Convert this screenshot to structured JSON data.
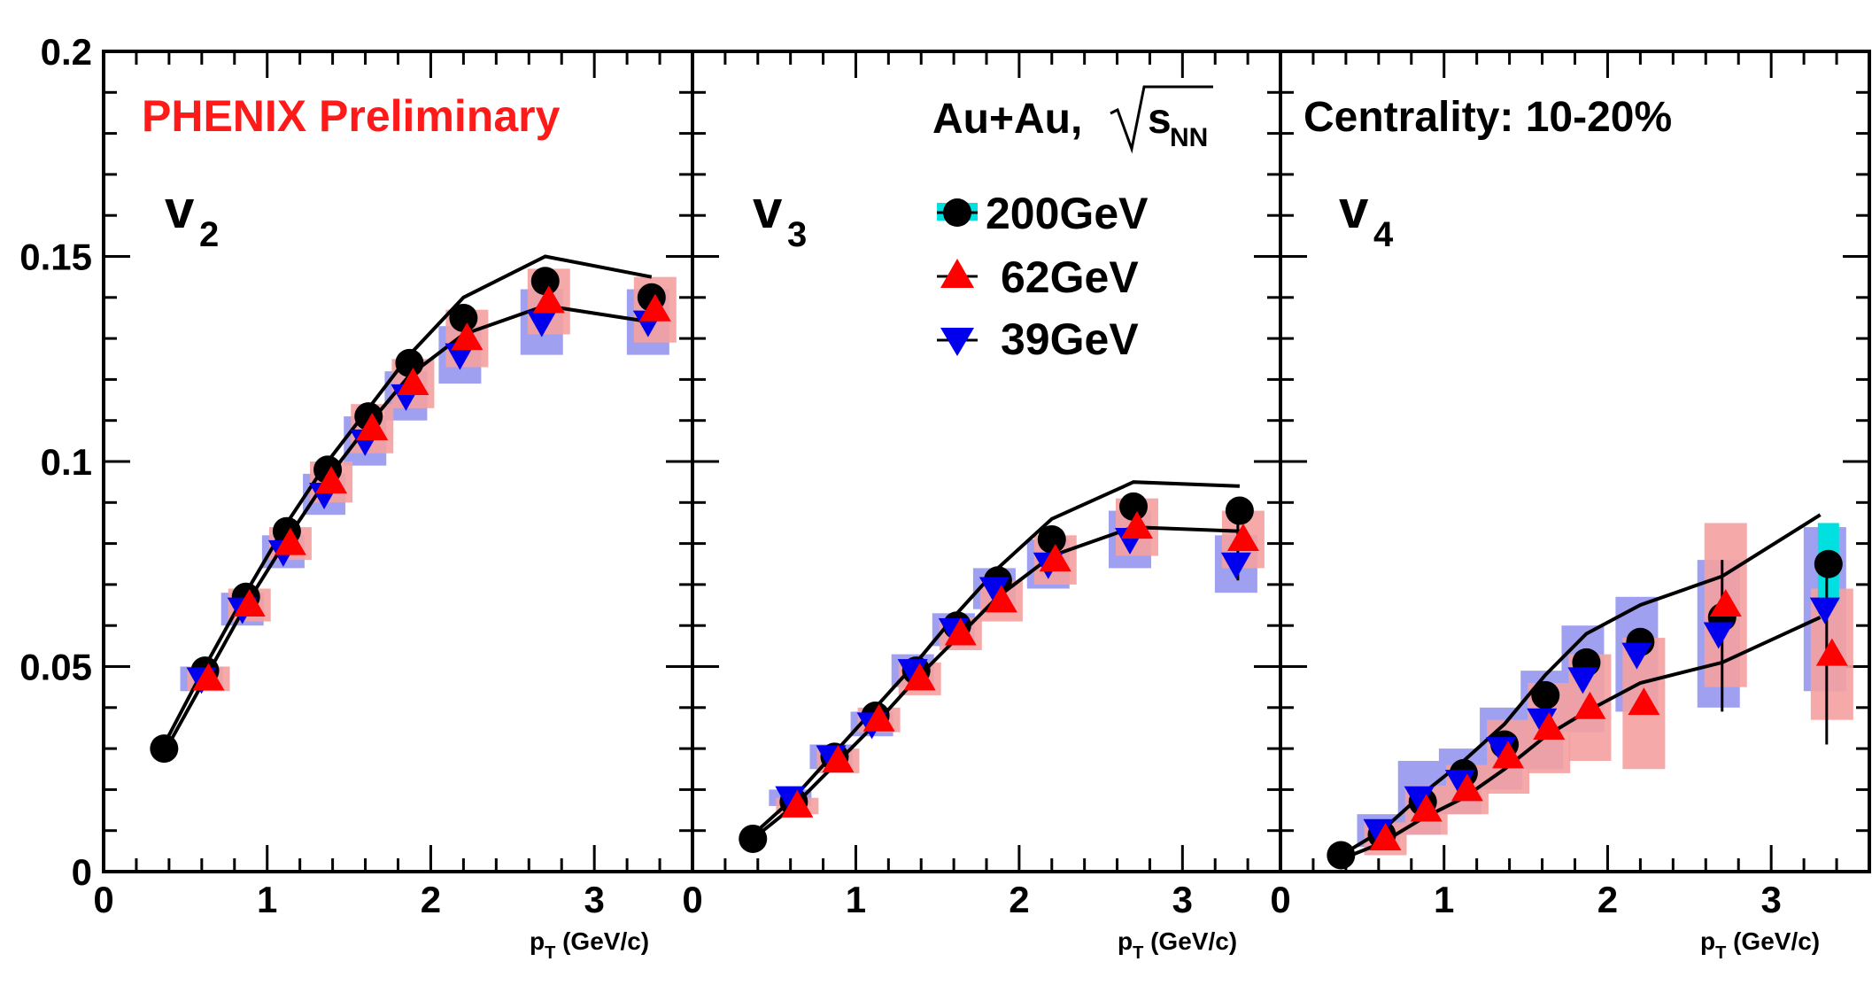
{
  "chart_data": {
    "type": "scatter",
    "title": "PHENIX Preliminary",
    "system_label": "Au+Au,",
    "energy_symbol": "s",
    "energy_subscript": "NN",
    "centrality_label": "Centrality: 10-20%",
    "xlabel": "p",
    "xlabel_sub": "T",
    "xlabel_unit": " (GeV/c)",
    "xlim": [
      0,
      3.6
    ],
    "ylim": [
      0,
      0.2
    ],
    "xticks": [
      "0",
      "1",
      "2",
      "3"
    ],
    "yticks": [
      "0",
      "0.05",
      "0.1",
      "0.15",
      "0.2"
    ],
    "colors": {
      "s200": "#000000",
      "s62": "#ff0000",
      "s39": "#0000ee",
      "sys62": "#f4a0a0",
      "sys39": "#a0a0f0",
      "sys200": "#00e0e0",
      "model": "#000000"
    },
    "legend": [
      {
        "label": "200GeV",
        "marker": "circle"
      },
      {
        "label": "62GeV",
        "marker": "triangle-up"
      },
      {
        "label": "39GeV",
        "marker": "triangle-down"
      }
    ],
    "panels": [
      {
        "name": "v2",
        "var": "v",
        "sub": "2",
        "series": [
          {
            "name": "200GeV",
            "x": [
              0.37,
              0.62,
              0.87,
              1.12,
              1.37,
              1.62,
              1.87,
              2.2,
              2.7,
              3.35
            ],
            "y": [
              0.03,
              0.049,
              0.067,
              0.083,
              0.098,
              0.111,
              0.124,
              0.135,
              0.144,
              0.14
            ]
          },
          {
            "name": "62GeV",
            "x": [
              0.62,
              0.87,
              1.12,
              1.37,
              1.62,
              1.87,
              2.2,
              2.7,
              3.35
            ],
            "y": [
              0.047,
              0.065,
              0.08,
              0.095,
              0.108,
              0.119,
              0.13,
              0.139,
              0.137
            ]
          },
          {
            "name": "39GeV",
            "x": [
              0.62,
              0.87,
              1.12,
              1.37,
              1.62,
              1.87,
              2.2,
              2.7,
              3.35
            ],
            "y": [
              0.047,
              0.064,
              0.078,
              0.092,
              0.105,
              0.116,
              0.126,
              0.134,
              0.134
            ]
          }
        ],
        "sys_62": [
          0.003,
          0.004,
          0.004,
          0.005,
          0.006,
          0.006,
          0.007,
          0.008,
          0.008
        ],
        "sys_39": [
          0.003,
          0.004,
          0.004,
          0.005,
          0.006,
          0.006,
          0.007,
          0.008,
          0.008
        ],
        "model_upper": {
          "x": [
            0.37,
            0.62,
            0.87,
            1.12,
            1.37,
            1.62,
            1.87,
            2.2,
            2.7,
            3.35
          ],
          "y": [
            0.031,
            0.05,
            0.068,
            0.085,
            0.1,
            0.113,
            0.126,
            0.14,
            0.15,
            0.145
          ]
        },
        "model_lower": {
          "x": [
            0.37,
            0.62,
            0.87,
            1.12,
            1.37,
            1.62,
            1.87,
            2.2,
            2.7,
            3.35
          ],
          "y": [
            0.029,
            0.047,
            0.065,
            0.081,
            0.096,
            0.109,
            0.121,
            0.131,
            0.138,
            0.134
          ]
        }
      },
      {
        "name": "v3",
        "var": "v",
        "sub": "3",
        "series": [
          {
            "name": "200GeV",
            "x": [
              0.37,
              0.62,
              0.87,
              1.12,
              1.37,
              1.62,
              1.87,
              2.2,
              2.7,
              3.35
            ],
            "y": [
              0.008,
              0.017,
              0.028,
              0.038,
              0.049,
              0.06,
              0.071,
              0.081,
              0.089,
              0.088
            ]
          },
          {
            "name": "62GeV",
            "x": [
              0.62,
              0.87,
              1.12,
              1.37,
              1.62,
              1.87,
              2.2,
              2.7,
              3.35
            ],
            "y": [
              0.016,
              0.027,
              0.037,
              0.047,
              0.058,
              0.066,
              0.076,
              0.084,
              0.081
            ]
          },
          {
            "name": "39GeV",
            "x": [
              0.62,
              0.87,
              1.12,
              1.37,
              1.62,
              1.87,
              2.2,
              2.7,
              3.35
            ],
            "y": [
              0.018,
              0.028,
              0.036,
              0.049,
              0.059,
              0.069,
              0.075,
              0.081,
              0.075
            ]
          }
        ],
        "sys_62": [
          0.002,
          0.003,
          0.003,
          0.004,
          0.004,
          0.005,
          0.006,
          0.007,
          0.007
        ],
        "sys_39": [
          0.002,
          0.003,
          0.003,
          0.004,
          0.004,
          0.005,
          0.006,
          0.007,
          0.007
        ],
        "model_upper": {
          "x": [
            0.37,
            0.62,
            0.87,
            1.12,
            1.37,
            1.62,
            1.87,
            2.2,
            2.7,
            3.35
          ],
          "y": [
            0.009,
            0.018,
            0.029,
            0.04,
            0.051,
            0.063,
            0.074,
            0.086,
            0.095,
            0.094
          ]
        },
        "model_lower": {
          "x": [
            0.37,
            0.62,
            0.87,
            1.12,
            1.37,
            1.62,
            1.87,
            2.2,
            2.7,
            3.35
          ],
          "y": [
            0.008,
            0.016,
            0.026,
            0.036,
            0.047,
            0.057,
            0.067,
            0.077,
            0.084,
            0.083
          ]
        }
      },
      {
        "name": "v4",
        "var": "v",
        "sub": "4",
        "series": [
          {
            "name": "200GeV",
            "x": [
              0.37,
              0.62,
              0.87,
              1.12,
              1.37,
              1.62,
              1.87,
              2.2,
              2.7,
              3.35
            ],
            "y": [
              0.004,
              0.009,
              0.017,
              0.024,
              0.031,
              0.043,
              0.051,
              0.056,
              0.062,
              0.075
            ]
          },
          {
            "name": "62GeV",
            "x": [
              0.62,
              0.87,
              1.12,
              1.37,
              1.62,
              1.87,
              2.2,
              2.7,
              3.35
            ],
            "y": [
              0.008,
              0.015,
              0.02,
              0.028,
              0.035,
              0.04,
              0.041,
              0.065,
              0.053
            ]
          },
          {
            "name": "39GeV",
            "x": [
              0.62,
              0.87,
              1.12,
              1.37,
              1.62,
              1.87,
              2.2,
              2.7,
              3.35
            ],
            "y": [
              0.01,
              0.018,
              0.022,
              0.03,
              0.037,
              0.047,
              0.053,
              0.058,
              0.064
            ]
          }
        ],
        "sys_62": [
          0.004,
          0.006,
          0.006,
          0.009,
          0.011,
          0.013,
          0.016,
          0.02,
          0.016
        ],
        "sys_39": [
          0.004,
          0.009,
          0.008,
          0.01,
          0.012,
          0.013,
          0.014,
          0.018,
          0.02
        ],
        "model_upper": {
          "x": [
            0.37,
            0.62,
            0.87,
            1.12,
            1.37,
            1.62,
            1.87,
            2.2,
            2.7,
            3.3
          ],
          "y": [
            0.004,
            0.01,
            0.019,
            0.027,
            0.036,
            0.048,
            0.058,
            0.065,
            0.072,
            0.087
          ]
        },
        "model_lower": {
          "x": [
            0.37,
            0.62,
            0.87,
            1.12,
            1.37,
            1.62,
            1.87,
            2.2,
            2.7,
            3.3
          ],
          "y": [
            0.003,
            0.007,
            0.013,
            0.018,
            0.025,
            0.033,
            0.039,
            0.046,
            0.051,
            0.062
          ]
        }
      }
    ]
  }
}
